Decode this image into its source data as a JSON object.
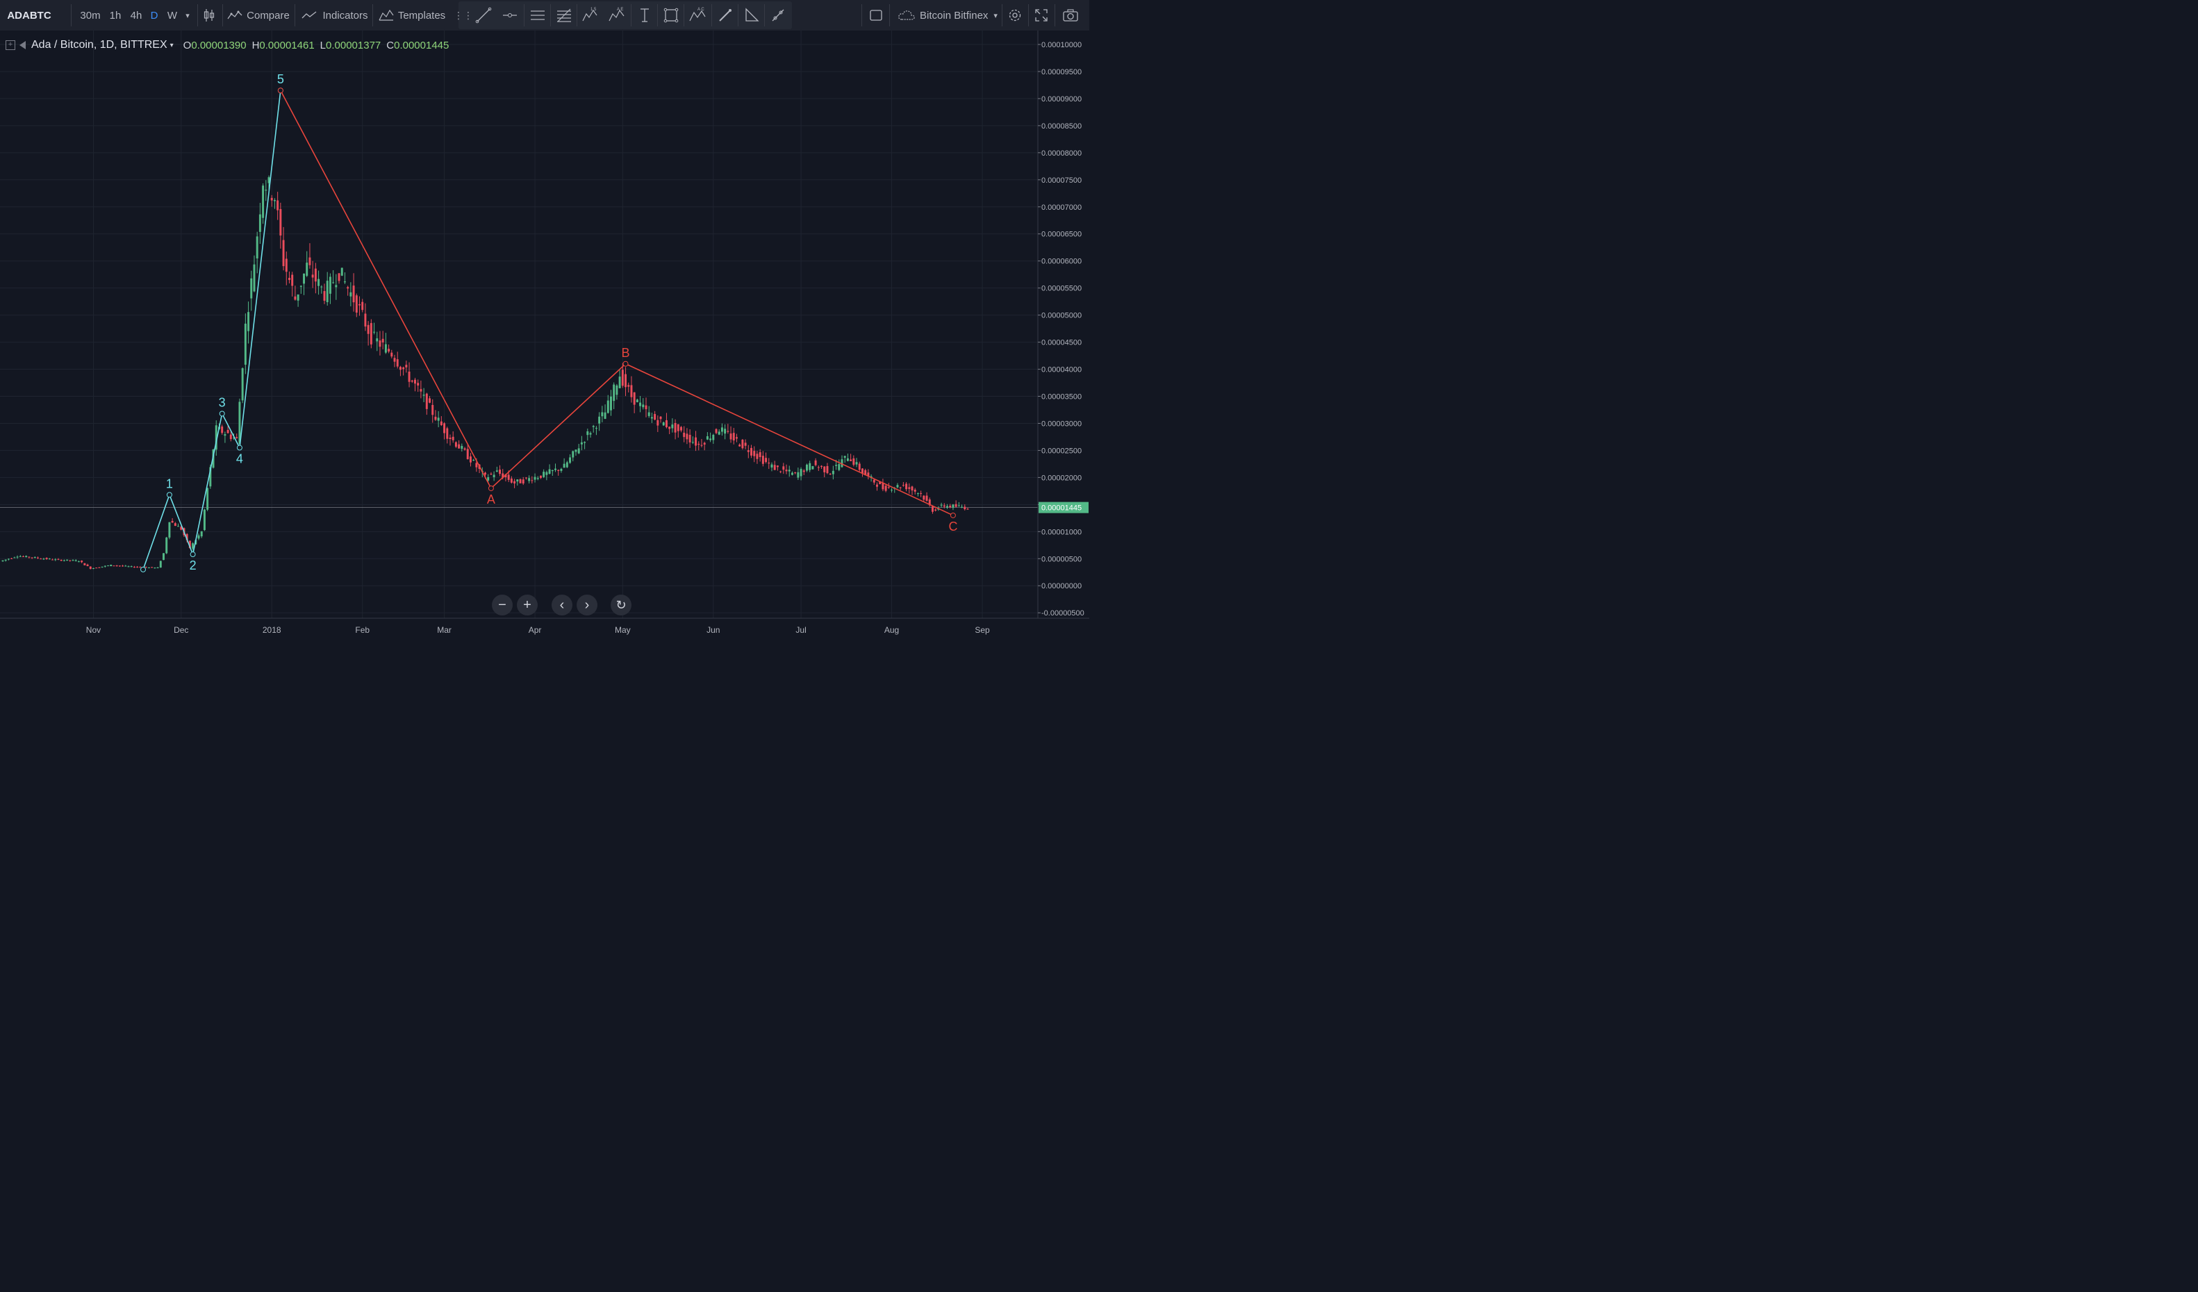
{
  "toolbar": {
    "symbol": "ADABTC",
    "intervals": [
      "30m",
      "1h",
      "4h",
      "D",
      "W"
    ],
    "compare_label": "Compare",
    "indicators_label": "Indicators",
    "templates_label": "Templates",
    "exchange_label": "Bitcoin Bitfinex"
  },
  "legend": {
    "title": "Ada / Bitcoin, 1D, BITTREX",
    "ohlc": [
      {
        "key": "O",
        "value": "0.00001390"
      },
      {
        "key": "H",
        "value": "0.00001461"
      },
      {
        "key": "L",
        "value": "0.00001377"
      },
      {
        "key": "C",
        "value": "0.00001445"
      }
    ]
  },
  "price_axis": {
    "labels": [
      "0.00010000",
      "0.00009500",
      "0.00009000",
      "0.00008500",
      "0.00008000",
      "0.00007500",
      "0.00007000",
      "0.00006500",
      "0.00006000",
      "0.00005500",
      "0.00005000",
      "0.00004500",
      "0.00004000",
      "0.00003500",
      "0.00003000",
      "0.00002500",
      "0.00002000",
      "0.00001500",
      "0.00001000",
      "0.00000500",
      "0.00000000",
      "-0.00000500"
    ],
    "last_price": "0.00001445"
  },
  "time_axis": {
    "labels": [
      "Nov",
      "Dec",
      "2018",
      "Feb",
      "Mar",
      "Apr",
      "May",
      "Jun",
      "Jul",
      "Aug",
      "Sep"
    ]
  },
  "colors": {
    "up": "#53b987",
    "down": "#eb4d5c",
    "wave_impulse": "#6fe0e8",
    "wave_corrective": "#e8453c",
    "background": "#131722"
  },
  "chart_data": {
    "type": "candlestick",
    "title": "Ada / Bitcoin, 1D, BITTREX",
    "ylim": [
      -6e-06,
      0.0001
    ],
    "x_range": [
      "2017-10-01",
      "2018-09-20"
    ],
    "impulse_wave": [
      {
        "label": "",
        "date": "2017-11-18",
        "price": 3e-06
      },
      {
        "label": "1",
        "date": "2017-11-27",
        "price": 1.68e-05
      },
      {
        "label": "2",
        "date": "2017-12-05",
        "price": 5.8e-06
      },
      {
        "label": "3",
        "date": "2017-12-15",
        "price": 3.18e-05
      },
      {
        "label": "4",
        "date": "2017-12-21",
        "price": 2.55e-05
      },
      {
        "label": "5",
        "date": "2018-01-04",
        "price": 9.15e-05
      }
    ],
    "corrective_wave": [
      {
        "label": "",
        "date": "2018-01-04",
        "price": 9.15e-05
      },
      {
        "label": "A",
        "date": "2018-03-17",
        "price": 1.8e-05
      },
      {
        "label": "B",
        "date": "2018-05-02",
        "price": 4.1e-05
      },
      {
        "label": "C",
        "date": "2018-08-22",
        "price": 1.3e-05
      }
    ],
    "price_path": [
      [
        "2017-10-01",
        4.5e-06
      ],
      [
        "2017-10-07",
        5.5e-06
      ],
      [
        "2017-10-20",
        4.8e-06
      ],
      [
        "2017-10-28",
        4.6e-06
      ],
      [
        "2017-11-01",
        3.2e-06
      ],
      [
        "2017-11-08",
        3.8e-06
      ],
      [
        "2017-11-15",
        3.5e-06
      ],
      [
        "2017-11-24",
        3.3e-06
      ],
      [
        "2017-11-26",
        6e-06
      ],
      [
        "2017-11-28",
        1.2e-05
      ],
      [
        "2017-12-02",
        1.05e-05
      ],
      [
        "2017-12-05",
        7e-06
      ],
      [
        "2017-12-09",
        1e-05
      ],
      [
        "2017-12-11",
        1.8e-05
      ],
      [
        "2017-12-14",
        2.9e-05
      ],
      [
        "2017-12-18",
        2.8e-05
      ],
      [
        "2017-12-21",
        2.7e-05
      ],
      [
        "2017-12-24",
        4.8e-05
      ],
      [
        "2017-12-27",
        6e-05
      ],
      [
        "2017-12-30",
        7.5e-05
      ],
      [
        "2018-01-03",
        7.2e-05
      ],
      [
        "2018-01-06",
        6e-05
      ],
      [
        "2018-01-10",
        5.3e-05
      ],
      [
        "2018-01-14",
        5.9e-05
      ],
      [
        "2018-01-20",
        5.4e-05
      ],
      [
        "2018-01-25",
        5.8e-05
      ],
      [
        "2018-02-01",
        5.1e-05
      ],
      [
        "2018-02-05",
        4.6e-05
      ],
      [
        "2018-02-12",
        4.3e-05
      ],
      [
        "2018-02-20",
        3.7e-05
      ],
      [
        "2018-02-26",
        3.2e-05
      ],
      [
        "2018-03-03",
        2.8e-05
      ],
      [
        "2018-03-10",
        2.4e-05
      ],
      [
        "2018-03-16",
        2e-05
      ],
      [
        "2018-03-20",
        2.1e-05
      ],
      [
        "2018-03-26",
        1.9e-05
      ],
      [
        "2018-04-05",
        2.05e-05
      ],
      [
        "2018-04-12",
        2.2e-05
      ],
      [
        "2018-04-20",
        2.8e-05
      ],
      [
        "2018-04-26",
        3.2e-05
      ],
      [
        "2018-05-01",
        3.9e-05
      ],
      [
        "2018-05-05",
        3.5e-05
      ],
      [
        "2018-05-12",
        3.1e-05
      ],
      [
        "2018-05-20",
        2.9e-05
      ],
      [
        "2018-05-28",
        2.6e-05
      ],
      [
        "2018-06-04",
        2.9e-05
      ],
      [
        "2018-06-12",
        2.6e-05
      ],
      [
        "2018-06-22",
        2.2e-05
      ],
      [
        "2018-06-30",
        2.05e-05
      ],
      [
        "2018-07-06",
        2.25e-05
      ],
      [
        "2018-07-12",
        2.1e-05
      ],
      [
        "2018-07-18",
        2.4e-05
      ],
      [
        "2018-07-24",
        2.05e-05
      ],
      [
        "2018-07-30",
        1.8e-05
      ],
      [
        "2018-08-06",
        1.85e-05
      ],
      [
        "2018-08-12",
        1.7e-05
      ],
      [
        "2018-08-16",
        1.4e-05
      ],
      [
        "2018-08-20",
        1.48e-05
      ],
      [
        "2018-08-27",
        1.45e-05
      ]
    ]
  }
}
